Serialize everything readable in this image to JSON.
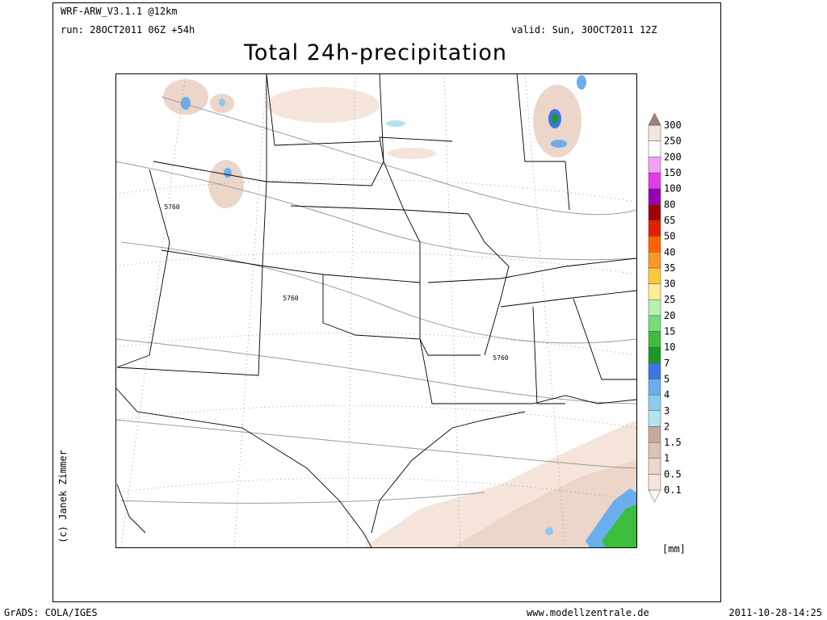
{
  "header": {
    "model": "WRF-ARW_V3.1.1 @12km",
    "run": "run: 28OCT2011 06Z +54h",
    "valid": "valid: Sun, 30OCT2011 12Z",
    "title": "Total 24h-precipitation"
  },
  "map": {
    "contour_labels": [
      "5760",
      "5760",
      "5760"
    ],
    "credit": "(c) Janek Zimmer"
  },
  "colorbar": {
    "levels": [
      0.1,
      0.5,
      1,
      1.5,
      2,
      3,
      4,
      5,
      7,
      10,
      15,
      20,
      25,
      30,
      35,
      40,
      50,
      65,
      80,
      100,
      150,
      200,
      250,
      300
    ],
    "colors": [
      "#fdf6f2",
      "#f5e4da",
      "#ecd5c9",
      "#ddc2b6",
      "#c9a89b",
      "#b0e4f0",
      "#8ccaf0",
      "#6aaeee",
      "#3c76e2",
      "#1e9628",
      "#3cbe3c",
      "#78dc78",
      "#b8f0b0",
      "#ffee96",
      "#ffc83c",
      "#ff9628",
      "#ff6400",
      "#e61e00",
      "#a00000",
      "#9600b4",
      "#e13ce6",
      "#f5a0f5",
      "#ffffff",
      "#f2e6dc",
      "#a08274"
    ],
    "unit": "[mm]"
  },
  "footer": {
    "left": "GrADS: COLA/IGES",
    "center": "www.modellzentrale.de",
    "right": "2011-10-28-14:25"
  }
}
